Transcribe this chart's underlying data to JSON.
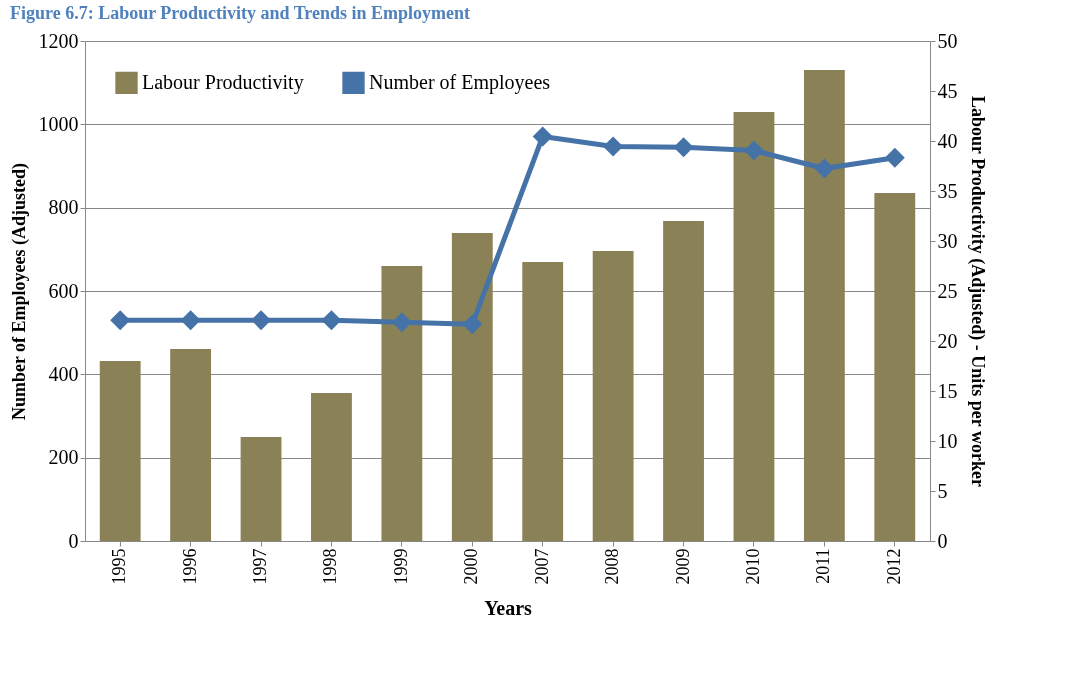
{
  "chart_data": {
    "type": "bar",
    "title": "Figure 6.7: Labour Productivity and Trends in Employment",
    "xlabel": "Years",
    "ylabel": "Number of Employees (Adjusted)",
    "y2label": "Labour Productivity (Adjusted) - Units per worker",
    "categories": [
      "1995",
      "1996",
      "1997",
      "1998",
      "1999",
      "2000",
      "2007",
      "2008",
      "2009",
      "2010",
      "2011",
      "2012"
    ],
    "series": [
      {
        "name": "Labour Productivity",
        "axis": "y2",
        "color": "#8a8256",
        "values": [
          18.0,
          19.2,
          10.4,
          14.8,
          27.5,
          30.8,
          27.9,
          29.0,
          32.0,
          42.9,
          47.1,
          34.8
        ]
      },
      {
        "name": "Number of Employees",
        "type": "line",
        "color": "#4572a7",
        "values": [
          530,
          530,
          530,
          530,
          525,
          520,
          971,
          947,
          945,
          937,
          894,
          920
        ]
      }
    ],
    "ylim": [
      0,
      1200
    ],
    "yticks": [
      0,
      200,
      400,
      600,
      800,
      1000,
      1200
    ],
    "y2lim": [
      0,
      50
    ],
    "y2ticks": [
      0,
      5,
      10,
      15,
      20,
      25,
      30,
      35,
      40,
      45,
      50
    ],
    "grid": "y",
    "legend": "top left",
    "marker": "diamond"
  }
}
